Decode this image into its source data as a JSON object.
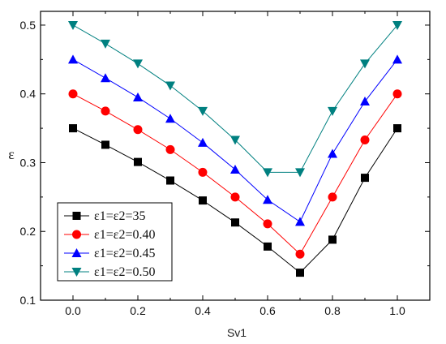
{
  "chart_data": {
    "type": "line",
    "title": "",
    "xlabel": "Sv1",
    "ylabel": "ε",
    "xlim": [
      -0.1,
      1.1
    ],
    "ylim": [
      0.1,
      0.52
    ],
    "xticks": [
      "0.0",
      "0.2",
      "0.4",
      "0.6",
      "0.8",
      "1.0"
    ],
    "yticks": [
      "0.1",
      "0.2",
      "0.3",
      "0.4",
      "0.5"
    ],
    "grid": false,
    "legend": "bottom-left",
    "x": [
      0.0,
      0.1,
      0.2,
      0.3,
      0.4,
      0.5,
      0.6,
      0.7,
      0.8,
      0.9,
      1.0
    ],
    "series": [
      {
        "name": "ε1=ε2=35",
        "color": "#000000",
        "marker": "square",
        "values": [
          0.35,
          0.326,
          0.301,
          0.274,
          0.245,
          0.213,
          0.178,
          0.14,
          0.188,
          0.278,
          0.35
        ]
      },
      {
        "name": "ε1=ε2=0.40",
        "color": "#ff0000",
        "marker": "circle",
        "values": [
          0.4,
          0.375,
          0.348,
          0.319,
          0.286,
          0.25,
          0.211,
          0.167,
          0.25,
          0.333,
          0.4
        ]
      },
      {
        "name": "ε1=ε2=0.45",
        "color": "#0000ff",
        "marker": "triangle-up",
        "values": [
          0.45,
          0.423,
          0.395,
          0.364,
          0.329,
          0.29,
          0.246,
          0.214,
          0.313,
          0.389,
          0.45
        ]
      },
      {
        "name": "ε1=ε2=0.50",
        "color": "#008080",
        "marker": "triangle-down",
        "values": [
          0.5,
          0.473,
          0.444,
          0.412,
          0.375,
          0.333,
          0.286,
          0.286,
          0.375,
          0.444,
          0.5
        ]
      }
    ]
  }
}
